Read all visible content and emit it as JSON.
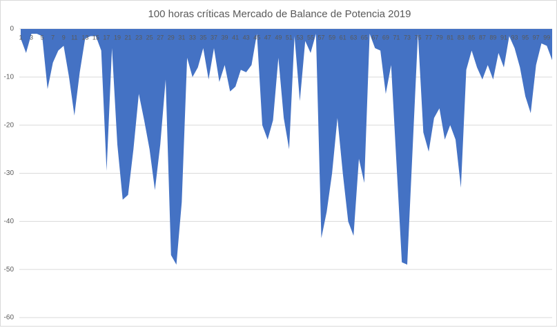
{
  "chart_data": {
    "type": "area",
    "title": "100 horas críticas Mercado de Balance de Potencia 2019",
    "categories": [
      1,
      null,
      3,
      null,
      5,
      null,
      7,
      null,
      9,
      null,
      11,
      null,
      13,
      null,
      15,
      null,
      17,
      null,
      19,
      null,
      21,
      null,
      23,
      null,
      25,
      null,
      27,
      null,
      29,
      null,
      31,
      null,
      33,
      null,
      35,
      null,
      37,
      null,
      39,
      null,
      41,
      null,
      43,
      null,
      45,
      null,
      47,
      null,
      49,
      null,
      51,
      null,
      53,
      null,
      55,
      null,
      57,
      null,
      59,
      null,
      61,
      null,
      63,
      null,
      65,
      null,
      67,
      null,
      69,
      null,
      71,
      null,
      73,
      null,
      75,
      null,
      77,
      null,
      79,
      null,
      81,
      null,
      83,
      null,
      85,
      null,
      87,
      null,
      89,
      null,
      91,
      null,
      93,
      null,
      95,
      null,
      97,
      null,
      99,
      null
    ],
    "values": [
      -2,
      -5,
      -1,
      -1,
      -1.5,
      -12.5,
      -7,
      -4.5,
      -3.5,
      -10,
      -18,
      -9,
      -2,
      -1.5,
      -1.5,
      -4.5,
      -29.5,
      -4,
      -24,
      -35.5,
      -34.5,
      -25,
      -13.5,
      -19,
      -25,
      -33.5,
      -24,
      -10.5,
      -47,
      -49,
      -36,
      -6,
      -10,
      -8,
      -4,
      -10.5,
      -4,
      -11,
      -7.5,
      -13,
      -12,
      -8.5,
      -9,
      -7.5,
      -1,
      -20,
      -23,
      -19,
      -6,
      -18.5,
      -25,
      -1.5,
      -15,
      -2.5,
      -5,
      -1,
      -43.5,
      -38,
      -30,
      -18.5,
      -30,
      -40,
      -43,
      -27,
      -32,
      -1,
      -4,
      -4.5,
      -13.5,
      -7.5,
      -28,
      -48.5,
      -49,
      -25,
      -1,
      -21.5,
      -25.5,
      -18.5,
      -16.5,
      -23,
      -20,
      -23,
      -33,
      -8.5,
      -4.5,
      -8,
      -10.5,
      -7.5,
      -10.5,
      -5,
      -8,
      -1.5,
      -4,
      -8,
      -14,
      -17.5,
      -7.5,
      -3,
      -3.5,
      -6.5
    ],
    "color": "#4472c4",
    "ylim": [
      -60,
      0
    ],
    "yticks": [
      0,
      -10,
      -20,
      -30,
      -40,
      -50,
      -60
    ],
    "grid": true
  }
}
